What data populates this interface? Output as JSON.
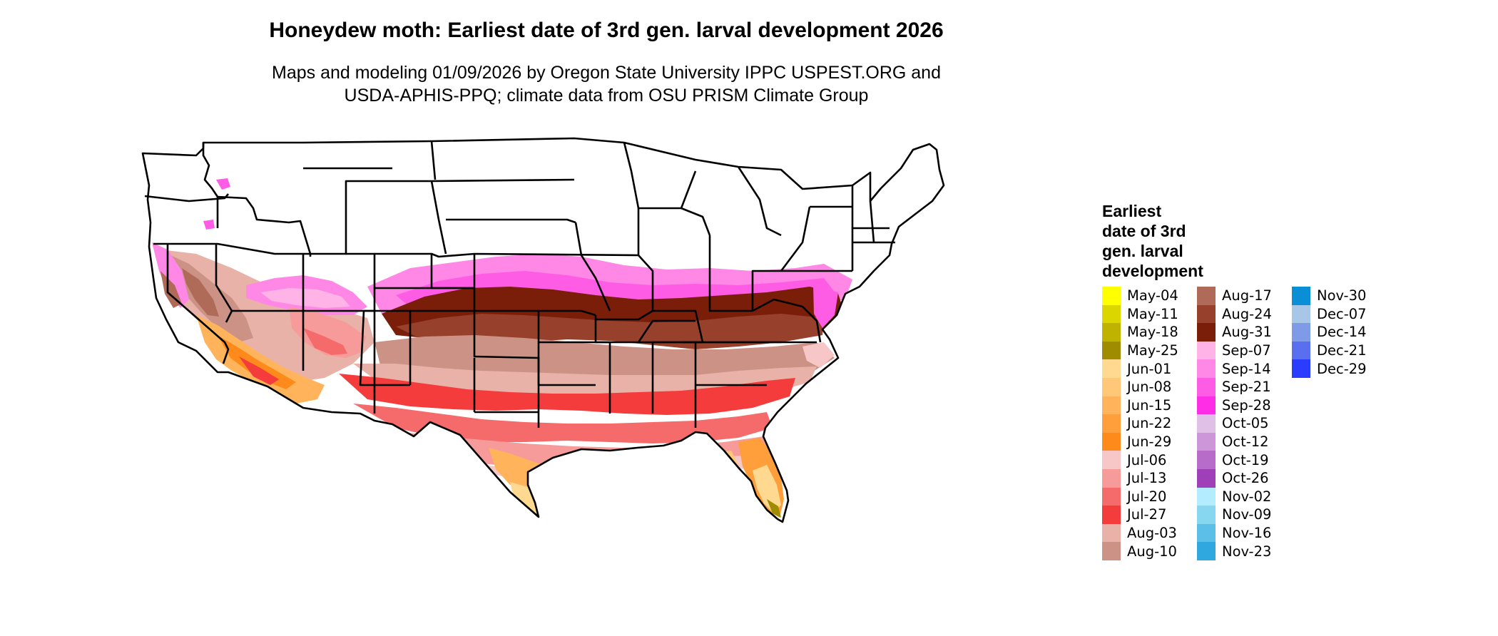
{
  "title": "Honeydew moth: Earliest date of 3rd gen. larval development 2026",
  "subtitle_lines": [
    "Maps and modeling 01/09/2026 by Oregon State University IPPC USPEST.ORG and",
    "USDA-APHIS-PPQ; climate data from OSU PRISM Climate Group"
  ],
  "legend": {
    "title": "Earliest\ndate of 3rd\ngen. larval\ndevelopment",
    "columns": [
      [
        {
          "label": "May-04",
          "color": "#ffff00"
        },
        {
          "label": "May-11",
          "color": "#dcd600"
        },
        {
          "label": "May-18",
          "color": "#bfb300"
        },
        {
          "label": "May-25",
          "color": "#a08c00"
        },
        {
          "label": "Jun-01",
          "color": "#ffd98f"
        },
        {
          "label": "Jun-08",
          "color": "#ffc878"
        },
        {
          "label": "Jun-15",
          "color": "#ffb45c"
        },
        {
          "label": "Jun-22",
          "color": "#ff9f3c"
        },
        {
          "label": "Jun-29",
          "color": "#ff8a1c"
        },
        {
          "label": "Jul-06",
          "color": "#f7c7c7"
        },
        {
          "label": "Jul-13",
          "color": "#f79a9a"
        },
        {
          "label": "Jul-20",
          "color": "#f56a6a"
        },
        {
          "label": "Jul-27",
          "color": "#f43c3c"
        },
        {
          "label": "Aug-03",
          "color": "#e8b2a8"
        },
        {
          "label": "Aug-10",
          "color": "#cc9286"
        }
      ],
      [
        {
          "label": "Aug-17",
          "color": "#b06a58"
        },
        {
          "label": "Aug-24",
          "color": "#97402c"
        },
        {
          "label": "Aug-31",
          "color": "#7a1e0a"
        },
        {
          "label": "Sep-07",
          "color": "#ffb3e6"
        },
        {
          "label": "Sep-14",
          "color": "#ff88e6"
        },
        {
          "label": "Sep-21",
          "color": "#ff5ce6"
        },
        {
          "label": "Sep-28",
          "color": "#ff2ee6"
        },
        {
          "label": "Oct-05",
          "color": "#e0c0e6"
        },
        {
          "label": "Oct-12",
          "color": "#cc96d9"
        },
        {
          "label": "Oct-19",
          "color": "#b86cc9"
        },
        {
          "label": "Oct-26",
          "color": "#a040b8"
        },
        {
          "label": "Nov-02",
          "color": "#b3ecff"
        },
        {
          "label": "Nov-09",
          "color": "#88d7f0"
        },
        {
          "label": "Nov-16",
          "color": "#5cbfe8"
        },
        {
          "label": "Nov-23",
          "color": "#2ea8df"
        }
      ],
      [
        {
          "label": "Nov-30",
          "color": "#0a8ed6"
        },
        {
          "label": "Dec-07",
          "color": "#a8c6e8"
        },
        {
          "label": "Dec-14",
          "color": "#7f9be8"
        },
        {
          "label": "Dec-21",
          "color": "#5a6ef0"
        },
        {
          "label": "Dec-29",
          "color": "#2a3cff"
        }
      ]
    ]
  }
}
